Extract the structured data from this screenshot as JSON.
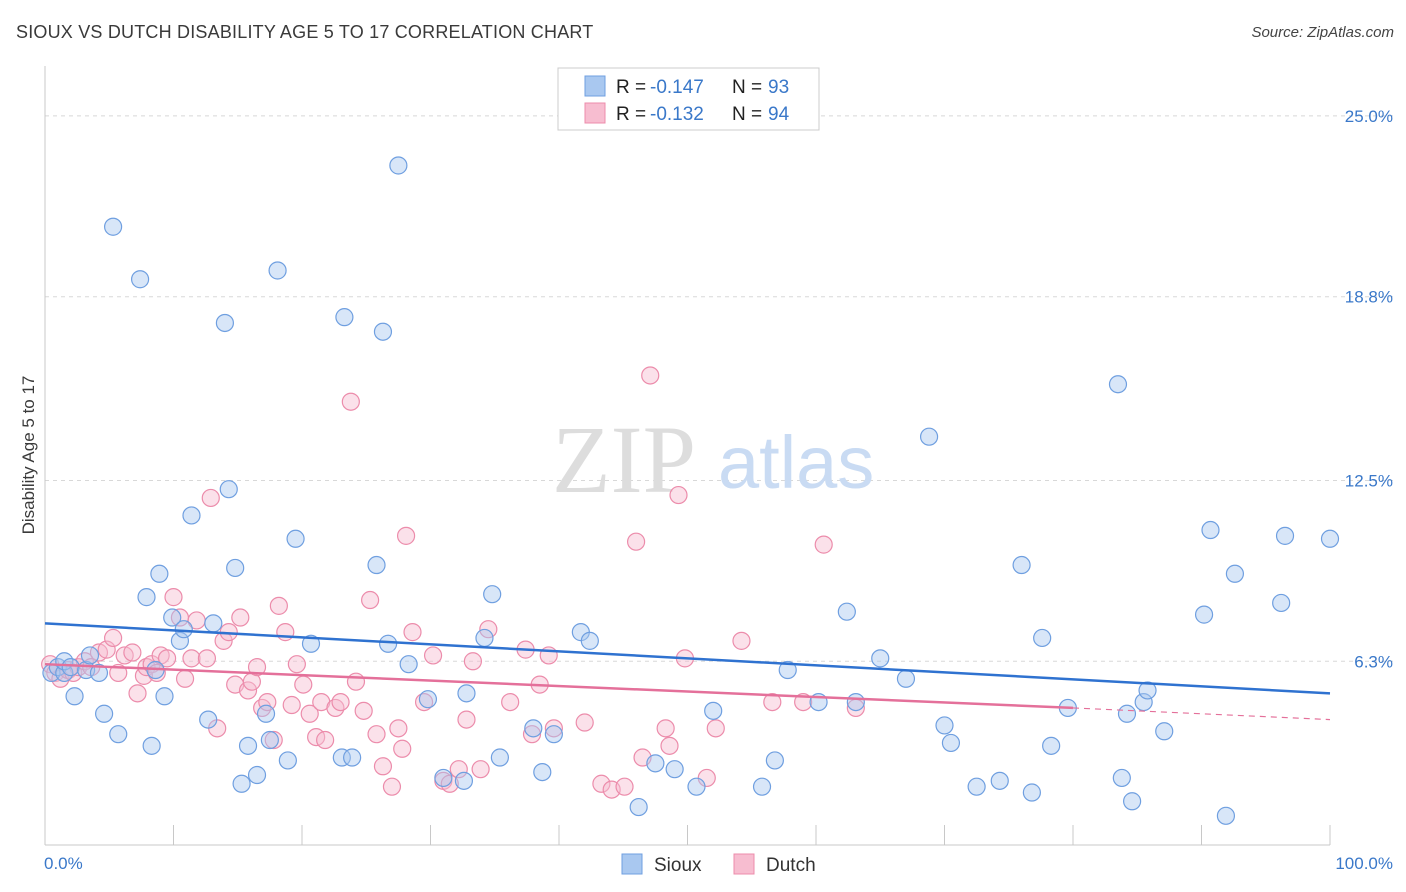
{
  "title": "SIOUX VS DUTCH DISABILITY AGE 5 TO 17 CORRELATION CHART",
  "source": "Source: ZipAtlas.com",
  "watermark": {
    "zip": "ZIP",
    "atlas": "atlas"
  },
  "legend_top": [
    {
      "r_label": "R =",
      "r_value": "-0.147",
      "n_label": "N =",
      "n_value": "93"
    },
    {
      "r_label": "R =",
      "r_value": "-0.132",
      "n_label": "N =",
      "n_value": "94"
    }
  ],
  "legend_bottom": [
    "Sioux",
    "Dutch"
  ],
  "colors": {
    "sioux_fill": "#a9c8f0",
    "sioux_stroke": "#6f9fe0",
    "sioux_line": "#2f72d0",
    "dutch_fill": "#f7bdd0",
    "dutch_stroke": "#ec8cab",
    "dutch_line": "#e4709a",
    "tick": "#3a78c9",
    "grid": "#d8d8d8"
  },
  "chart_data": {
    "type": "scatter",
    "title": "SIOUX VS DUTCH DISABILITY AGE 5 TO 17 CORRELATION CHART",
    "xlabel": "",
    "ylabel": "Disability Age 5 to 17",
    "xlim": [
      0,
      100
    ],
    "ylim": [
      0,
      26.3
    ],
    "x_tick_labels": [
      "0.0%",
      "100.0%"
    ],
    "y_ticks": [
      6.3,
      12.5,
      18.8,
      25.0
    ],
    "y_tick_labels": [
      "6.3%",
      "12.5%",
      "18.8%",
      "25.0%"
    ],
    "grid": true,
    "legend": "top-center",
    "series": [
      {
        "name": "Sioux",
        "r": -0.147,
        "n": 93,
        "trend": {
          "x": [
            0,
            100
          ],
          "y": [
            7.6,
            5.2
          ]
        },
        "points": [
          [
            0.5,
            5.9
          ],
          [
            1.0,
            6.1
          ],
          [
            1.5,
            5.9
          ],
          [
            1.5,
            6.3
          ],
          [
            2.0,
            6.1
          ],
          [
            2.3,
            5.1
          ],
          [
            3.2,
            6.0
          ],
          [
            3.5,
            6.5
          ],
          [
            4.2,
            5.9
          ],
          [
            4.6,
            4.5
          ],
          [
            5.3,
            21.2
          ],
          [
            5.7,
            3.8
          ],
          [
            7.4,
            19.4
          ],
          [
            7.9,
            8.5
          ],
          [
            8.3,
            3.4
          ],
          [
            8.6,
            6.0
          ],
          [
            8.9,
            9.3
          ],
          [
            9.3,
            5.1
          ],
          [
            9.9,
            7.8
          ],
          [
            10.5,
            7.0
          ],
          [
            10.8,
            7.4
          ],
          [
            11.4,
            11.3
          ],
          [
            12.7,
            4.3
          ],
          [
            13.1,
            7.6
          ],
          [
            14.0,
            17.9
          ],
          [
            14.3,
            12.2
          ],
          [
            14.8,
            9.5
          ],
          [
            15.3,
            2.1
          ],
          [
            15.8,
            3.4
          ],
          [
            16.5,
            2.4
          ],
          [
            17.2,
            4.5
          ],
          [
            17.5,
            3.6
          ],
          [
            18.1,
            19.7
          ],
          [
            18.9,
            2.9
          ],
          [
            19.5,
            10.5
          ],
          [
            20.7,
            6.9
          ],
          [
            23.1,
            3.0
          ],
          [
            23.3,
            18.1
          ],
          [
            23.9,
            3.0
          ],
          [
            25.8,
            9.6
          ],
          [
            26.3,
            17.6
          ],
          [
            26.7,
            6.9
          ],
          [
            27.5,
            23.3
          ],
          [
            28.3,
            6.2
          ],
          [
            29.8,
            5.0
          ],
          [
            31.0,
            2.3
          ],
          [
            32.6,
            2.2
          ],
          [
            32.8,
            5.2
          ],
          [
            34.2,
            7.1
          ],
          [
            34.8,
            8.6
          ],
          [
            35.4,
            3.0
          ],
          [
            38.0,
            4.0
          ],
          [
            38.7,
            2.5
          ],
          [
            39.6,
            3.8
          ],
          [
            41.7,
            7.3
          ],
          [
            42.4,
            7.0
          ],
          [
            46.2,
            1.3
          ],
          [
            47.5,
            2.8
          ],
          [
            49.0,
            2.6
          ],
          [
            50.7,
            2.0
          ],
          [
            52.0,
            4.6
          ],
          [
            55.8,
            2.0
          ],
          [
            56.8,
            2.9
          ],
          [
            57.8,
            6.0
          ],
          [
            60.2,
            4.9
          ],
          [
            62.4,
            8.0
          ],
          [
            63.1,
            4.9
          ],
          [
            65.0,
            6.4
          ],
          [
            67.0,
            5.7
          ],
          [
            68.8,
            14.0
          ],
          [
            70.0,
            4.1
          ],
          [
            70.5,
            3.5
          ],
          [
            72.5,
            2.0
          ],
          [
            74.3,
            2.2
          ],
          [
            76.8,
            1.8
          ],
          [
            78.3,
            3.4
          ],
          [
            76.0,
            9.6
          ],
          [
            77.6,
            7.1
          ],
          [
            79.6,
            4.7
          ],
          [
            83.5,
            15.8
          ],
          [
            83.8,
            2.3
          ],
          [
            84.2,
            4.5
          ],
          [
            84.6,
            1.5
          ],
          [
            85.5,
            4.9
          ],
          [
            85.8,
            5.3
          ],
          [
            87.1,
            3.9
          ],
          [
            90.2,
            7.9
          ],
          [
            90.7,
            10.8
          ],
          [
            91.9,
            1.0
          ],
          [
            92.6,
            9.3
          ],
          [
            96.2,
            8.3
          ],
          [
            96.5,
            10.6
          ],
          [
            100.0,
            10.5
          ]
        ]
      },
      {
        "name": "Dutch",
        "r": -0.132,
        "n": 94,
        "trend": {
          "x": [
            0,
            80
          ],
          "y": [
            6.2,
            4.7
          ]
        },
        "trend_dashed": {
          "x": [
            80,
            100
          ],
          "y": [
            4.7,
            4.3
          ]
        },
        "points": [
          [
            0.4,
            6.2
          ],
          [
            0.8,
            5.9
          ],
          [
            1.2,
            5.7
          ],
          [
            1.8,
            6.0
          ],
          [
            2.2,
            5.9
          ],
          [
            2.6,
            6.1
          ],
          [
            3.1,
            6.3
          ],
          [
            3.6,
            6.1
          ],
          [
            4.2,
            6.6
          ],
          [
            4.8,
            6.7
          ],
          [
            5.3,
            7.1
          ],
          [
            5.7,
            5.9
          ],
          [
            6.2,
            6.5
          ],
          [
            6.8,
            6.6
          ],
          [
            7.2,
            5.2
          ],
          [
            7.7,
            5.8
          ],
          [
            7.9,
            6.1
          ],
          [
            8.3,
            6.2
          ],
          [
            8.7,
            5.9
          ],
          [
            9.0,
            6.5
          ],
          [
            9.5,
            6.4
          ],
          [
            10.0,
            8.5
          ],
          [
            10.5,
            7.8
          ],
          [
            10.9,
            5.7
          ],
          [
            11.4,
            6.4
          ],
          [
            11.8,
            7.7
          ],
          [
            12.6,
            6.4
          ],
          [
            12.9,
            11.9
          ],
          [
            13.4,
            4.0
          ],
          [
            13.9,
            7.0
          ],
          [
            14.3,
            7.3
          ],
          [
            14.8,
            5.5
          ],
          [
            15.2,
            7.8
          ],
          [
            15.8,
            5.3
          ],
          [
            16.1,
            5.6
          ],
          [
            16.5,
            6.1
          ],
          [
            16.9,
            4.7
          ],
          [
            17.3,
            4.9
          ],
          [
            17.8,
            3.6
          ],
          [
            18.2,
            8.2
          ],
          [
            18.7,
            7.3
          ],
          [
            19.2,
            4.8
          ],
          [
            19.6,
            6.2
          ],
          [
            20.1,
            5.5
          ],
          [
            20.6,
            4.5
          ],
          [
            21.1,
            3.7
          ],
          [
            21.5,
            4.9
          ],
          [
            21.8,
            3.6
          ],
          [
            22.6,
            4.7
          ],
          [
            23.0,
            4.9
          ],
          [
            23.8,
            15.2
          ],
          [
            24.2,
            5.6
          ],
          [
            24.8,
            4.6
          ],
          [
            25.3,
            8.4
          ],
          [
            25.8,
            3.8
          ],
          [
            26.3,
            2.7
          ],
          [
            27.0,
            2.0
          ],
          [
            27.5,
            4.0
          ],
          [
            27.8,
            3.3
          ],
          [
            28.1,
            10.6
          ],
          [
            28.6,
            7.3
          ],
          [
            29.5,
            4.9
          ],
          [
            30.2,
            6.5
          ],
          [
            31.0,
            2.2
          ],
          [
            31.5,
            2.1
          ],
          [
            32.2,
            2.6
          ],
          [
            32.8,
            4.3
          ],
          [
            33.3,
            6.3
          ],
          [
            33.9,
            2.6
          ],
          [
            34.5,
            7.4
          ],
          [
            36.2,
            4.9
          ],
          [
            37.4,
            6.7
          ],
          [
            37.9,
            3.8
          ],
          [
            38.5,
            5.5
          ],
          [
            39.2,
            6.5
          ],
          [
            39.6,
            4.0
          ],
          [
            42.0,
            4.2
          ],
          [
            43.3,
            2.1
          ],
          [
            44.1,
            1.9
          ],
          [
            45.1,
            2.0
          ],
          [
            46.0,
            10.4
          ],
          [
            46.5,
            3.0
          ],
          [
            47.1,
            16.1
          ],
          [
            48.3,
            4.0
          ],
          [
            48.6,
            3.4
          ],
          [
            49.3,
            12.0
          ],
          [
            49.8,
            6.4
          ],
          [
            51.5,
            2.3
          ],
          [
            52.2,
            4.0
          ],
          [
            54.2,
            7.0
          ],
          [
            56.6,
            4.9
          ],
          [
            59.0,
            4.9
          ],
          [
            60.6,
            10.3
          ],
          [
            63.1,
            4.7
          ]
        ]
      }
    ]
  }
}
